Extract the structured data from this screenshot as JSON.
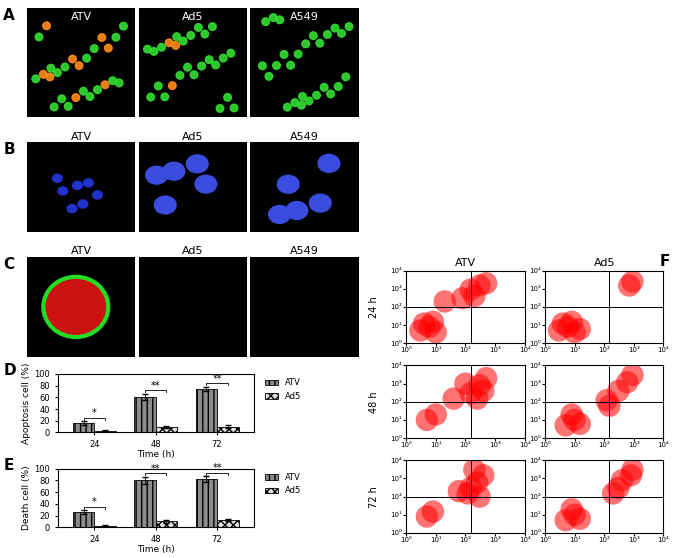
{
  "panels": [
    {
      "label": "A",
      "titles": [
        "ATV",
        "Ad5",
        "A549"
      ]
    },
    {
      "label": "B",
      "titles": [
        "ATV",
        "Ad5",
        "A549"
      ]
    },
    {
      "label": "C",
      "titles": [
        "ATV",
        "Ad5",
        "A549"
      ]
    }
  ],
  "chart_data": [
    {
      "type": "bar",
      "label": "D",
      "x_label": "Time (h)",
      "y_label": "Apoptosis cell (%)",
      "categories": [
        "24",
        "48",
        "72"
      ],
      "series": [
        {
          "name": "ATV",
          "color": "#8c8c8c",
          "values": [
            16,
            61,
            74
          ],
          "errors": [
            3,
            5,
            4
          ]
        },
        {
          "name": "Ad5",
          "color": "#e0e0e0",
          "values": [
            3,
            9,
            10
          ],
          "errors": [
            1,
            2,
            2
          ]
        }
      ],
      "significance": [
        "*",
        "**",
        "**"
      ],
      "ylim": [
        0,
        100
      ],
      "yticks": [
        0,
        20,
        40,
        60,
        80,
        100
      ],
      "legend": "upper left"
    },
    {
      "type": "bar",
      "label": "E",
      "x_label": "Time (h)",
      "y_label": "Death cell (%)",
      "categories": [
        "24",
        "48",
        "72"
      ],
      "series": [
        {
          "name": "ATV",
          "color": "#8c8c8c",
          "values": [
            26,
            80,
            82
          ],
          "errors": [
            3,
            6,
            5
          ]
        },
        {
          "name": "Ad5",
          "color": "#e0e0e0",
          "values": [
            3,
            10,
            12
          ],
          "errors": [
            1,
            3,
            2
          ]
        }
      ],
      "significance": [
        "*",
        "**",
        "**"
      ],
      "ylim": [
        0,
        100
      ],
      "yticks": [
        0,
        20,
        40,
        60,
        80,
        100
      ],
      "legend": "upper left"
    },
    {
      "type": "scatter",
      "label": "F",
      "log": true,
      "color": "#ff0000",
      "columns": [
        "ATV",
        "Ad5"
      ],
      "rows": [
        "24 h",
        "48 h",
        "72 h"
      ],
      "xlim": [
        1,
        10000
      ],
      "ylim": [
        1,
        10000
      ],
      "xticks": [
        {
          "value": 1,
          "label": "10⁰"
        },
        {
          "value": 10,
          "label": "10¹"
        },
        {
          "value": 100,
          "label": "10²"
        },
        {
          "value": 1000,
          "label": "10³"
        },
        {
          "value": 10000,
          "label": "10⁴"
        }
      ],
      "yticks": [
        {
          "value": 1,
          "label": "10⁰"
        },
        {
          "value": 10,
          "label": "10¹"
        },
        {
          "value": 100,
          "label": "10²"
        },
        {
          "value": 1000,
          "label": "10³"
        },
        {
          "value": 10000,
          "label": "10⁴"
        }
      ],
      "quadrant": {
        "x": 150,
        "y": 100
      },
      "plots": [
        [
          {
            "x": [
              3,
              6,
              10,
              4,
              8,
              150,
              300,
              500,
              200,
              80,
              20
            ],
            "y": [
              5,
              8,
              4,
              12,
              15,
              900,
              1500,
              2000,
              400,
              300,
              200
            ]
          },
          {
            "x": [
              3,
              6,
              10,
              4,
              8,
              15,
              700,
              900
            ],
            "y": [
              5,
              8,
              4,
              12,
              15,
              6,
              1500,
              2500
            ]
          }
        ],
        [
          {
            "x": [
              5,
              10,
              150,
              300,
              500,
              100,
              40,
              250,
              400
            ],
            "y": [
              10,
              20,
              300,
              800,
              2000,
              1000,
              150,
              150,
              400
            ]
          },
          {
            "x": [
              5,
              10,
              15,
              8,
              120,
              300,
              600,
              900,
              150
            ],
            "y": [
              5,
              10,
              6,
              20,
              120,
              400,
              1200,
              3000,
              60
            ]
          }
        ],
        [
          {
            "x": [
              5,
              8,
              150,
              250,
              400,
              200,
              120,
              60,
              300
            ],
            "y": [
              8,
              15,
              300,
              600,
              1500,
              3000,
              150,
              200,
              100
            ]
          },
          {
            "x": [
              5,
              10,
              15,
              8,
              400,
              800,
              900,
              300,
              200
            ],
            "y": [
              5,
              10,
              6,
              20,
              800,
              1500,
              3000,
              300,
              150
            ]
          }
        ]
      ]
    }
  ]
}
